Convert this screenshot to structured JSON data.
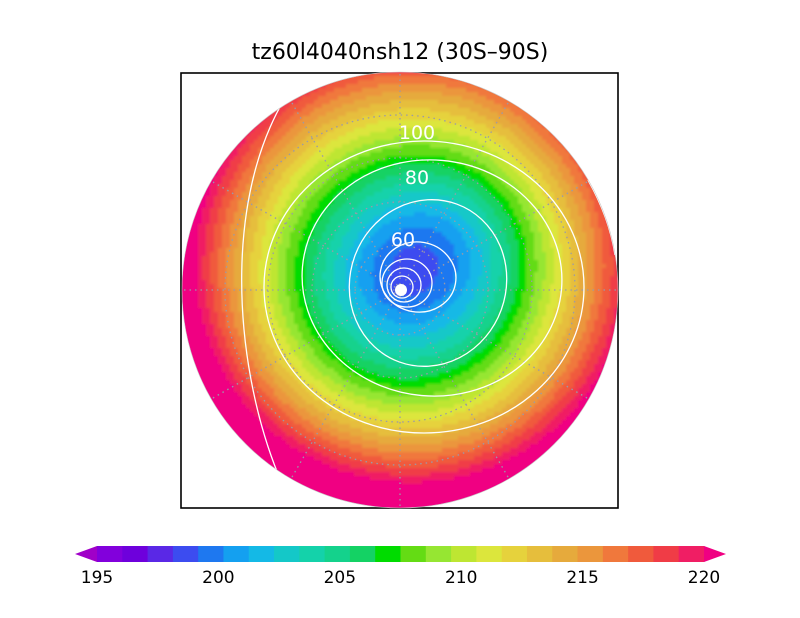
{
  "chart_data": {
    "type": "heatmap",
    "title": "tz60l4040nsh12 (30S–90S)",
    "projection": "south-polar-stereographic",
    "latitude_range": [
      "30S",
      "90S"
    ],
    "contour_levels": [
      60,
      80,
      100
    ],
    "contour_labels": [
      "60",
      "80",
      "100"
    ],
    "colorbar": {
      "min": 195,
      "max": 220,
      "step": 1,
      "tick_values": [
        195,
        200,
        205,
        210,
        215,
        220
      ],
      "tick_labels": [
        "195",
        "200",
        "205",
        "210",
        "215",
        "220"
      ],
      "extend": "both",
      "colors": [
        "#a000c8",
        "#8200dc",
        "#6e00dc",
        "#5a28e6",
        "#3c4cf0",
        "#1e78f0",
        "#14a0f0",
        "#14b9e6",
        "#14c8c8",
        "#14d2aa",
        "#14d28c",
        "#14d264",
        "#00dc00",
        "#64dc14",
        "#96e632",
        "#bee632",
        "#dce63c",
        "#e6d23c",
        "#e6be3c",
        "#e6aa3c",
        "#eb963c",
        "#f0783c",
        "#f05a3c",
        "#f03c46",
        "#f01e64",
        "#f00082"
      ]
    },
    "grid": true
  }
}
